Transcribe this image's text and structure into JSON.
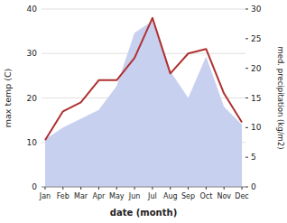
{
  "chart_data": {
    "type": "line",
    "xlabel": "date (month)",
    "ylabel": "max temp (C)",
    "y2label": "med. precipitation (kg/m2)",
    "categories": [
      "Jan",
      "Feb",
      "Mar",
      "Apr",
      "May",
      "Jun",
      "Jul",
      "Aug",
      "Sep",
      "Oct",
      "Nov",
      "Dec"
    ],
    "series": [
      {
        "type": "area",
        "axis": "y2",
        "color": "#c8d0f0",
        "values": [
          8.0,
          10.0,
          11.5,
          13.0,
          17.0,
          26.0,
          28.0,
          19.5,
          15.0,
          22.0,
          13.5,
          10.5
        ]
      },
      {
        "type": "line",
        "color": "#b03030",
        "values": [
          10.5,
          17.0,
          19.0,
          24.0,
          24.0,
          29.0,
          38.0,
          25.5,
          30.0,
          31.0,
          21.0,
          14.5
        ]
      }
    ],
    "ylim": [
      0,
      40
    ],
    "yticks": [
      0,
      10,
      20,
      30,
      40
    ],
    "y2lim": [
      0,
      30
    ],
    "y2ticks": [
      0,
      5,
      10,
      15,
      20,
      25,
      30
    ],
    "grid": true
  }
}
